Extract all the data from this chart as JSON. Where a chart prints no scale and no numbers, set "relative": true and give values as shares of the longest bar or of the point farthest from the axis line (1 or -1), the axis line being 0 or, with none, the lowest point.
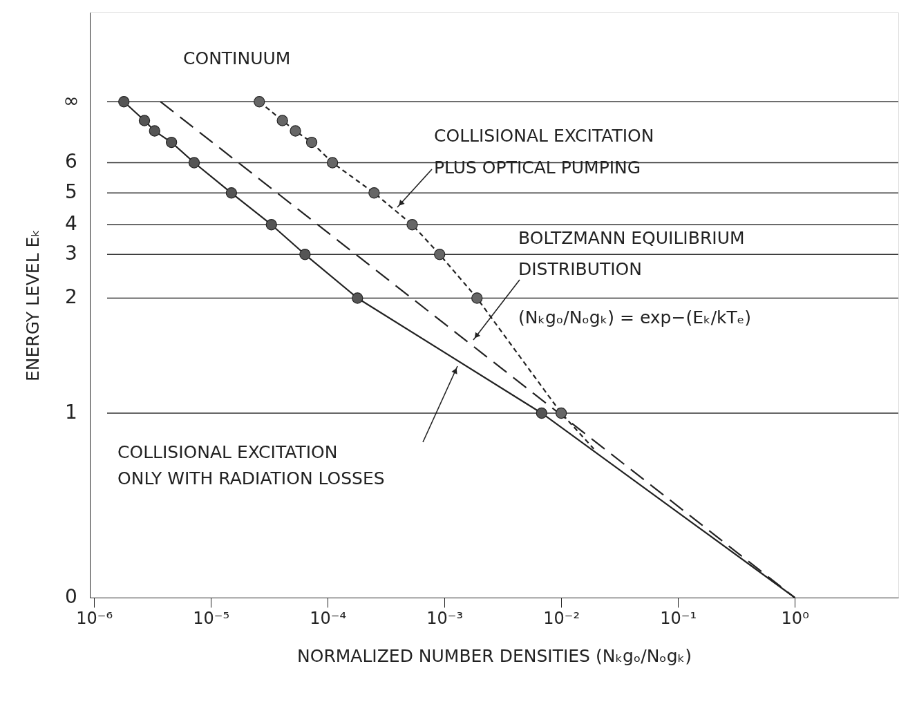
{
  "chart_data": {
    "type": "line",
    "xlabel": "NORMALIZED NUMBER DENSITIES (Nₖgₒ/Nₒgₖ)",
    "ylabel": "ENERGY LEVEL Eₖ",
    "log": "x",
    "relative": true,
    "xlim": [
      9.2e-07,
      7.7
    ],
    "xticks": [
      {
        "value": 1e-06,
        "label": "10⁻⁶"
      },
      {
        "value": 1e-05,
        "label": "10⁻⁵"
      },
      {
        "value": 0.0001,
        "label": "10⁻⁴"
      },
      {
        "value": 0.001,
        "label": "10⁻³"
      },
      {
        "value": 0.01,
        "label": "10⁻²"
      },
      {
        "value": 0.1,
        "label": "10⁻¹"
      },
      {
        "value": 1,
        "label": "10⁰"
      }
    ],
    "ref_lines": [
      {
        "axis": "y",
        "value": 0.372
      },
      {
        "axis": "y",
        "value": 0.604
      },
      {
        "axis": "y",
        "value": 0.692
      },
      {
        "axis": "y",
        "value": 0.752
      },
      {
        "axis": "y",
        "value": 0.816
      },
      {
        "axis": "y",
        "value": 0.877
      },
      {
        "axis": "y",
        "value": 1.0
      }
    ],
    "series": [
      {
        "color": "#222222",
        "line_style": "solid",
        "marker": "none",
        "x": [
          1.8e-06,
          2.7e-06,
          3.3e-06,
          4.6e-06,
          7.2e-06,
          1.5e-05,
          3.3e-05,
          6.4e-05,
          0.00018,
          0.0068,
          1.0
        ],
        "values": [
          1.0,
          0.962,
          0.941,
          0.918,
          0.877,
          0.816,
          0.752,
          0.692,
          0.604,
          0.372,
          0
        ]
      },
      {
        "color": "#222222",
        "line_style": "dashed",
        "marker": "none",
        "x": [
          3.7e-06,
          1.0
        ],
        "values": [
          1.0,
          0
        ]
      },
      {
        "color": "#222222",
        "line_style": "dotted",
        "marker": "none",
        "x": [
          2.6e-05,
          4.1e-05,
          5.3e-05,
          7.3e-05,
          0.00011,
          0.00025,
          0.00053,
          0.00091,
          0.0019,
          0.01,
          0.019
        ],
        "values": [
          1.0,
          0.962,
          0.941,
          0.918,
          0.877,
          0.816,
          0.752,
          0.692,
          0.604,
          0.372,
          0.3
        ]
      },
      {
        "type": "scatter",
        "color": "#555555",
        "marker": "circle",
        "x": [
          1.8e-06,
          2.7e-06,
          3.3e-06,
          4.6e-06,
          7.2e-06,
          1.5e-05,
          3.3e-05,
          6.4e-05,
          0.00018,
          0.0068
        ],
        "values": [
          1.0,
          0.962,
          0.941,
          0.918,
          0.877,
          0.816,
          0.752,
          0.692,
          0.604,
          0.372
        ]
      },
      {
        "type": "scatter",
        "color": "#666666",
        "marker": "circle",
        "x": [
          2.6e-05,
          4.1e-05,
          5.3e-05,
          7.3e-05,
          0.00011,
          0.00025,
          0.00053,
          0.00091,
          0.0019,
          0.01
        ],
        "values": [
          1.0,
          0.962,
          0.941,
          0.918,
          0.877,
          0.816,
          0.752,
          0.692,
          0.604,
          0.372
        ]
      }
    ],
    "annotations": [
      "CONTINUUM",
      "COLLISIONAL EXCITATION\nPLUS OPTICAL PUMPING",
      "BOLTZMANN EQUILIBRIUM\nDISTRIBUTION\n(Nₖgₒ/Nₒgₖ) = exp−(Eₖ/kTₑ)",
      "COLLISIONAL EXCITATION\nONLY WITH RADIATION LOSSES",
      "0",
      "1",
      "2",
      "3",
      "4",
      "5",
      "6",
      "∞"
    ]
  }
}
